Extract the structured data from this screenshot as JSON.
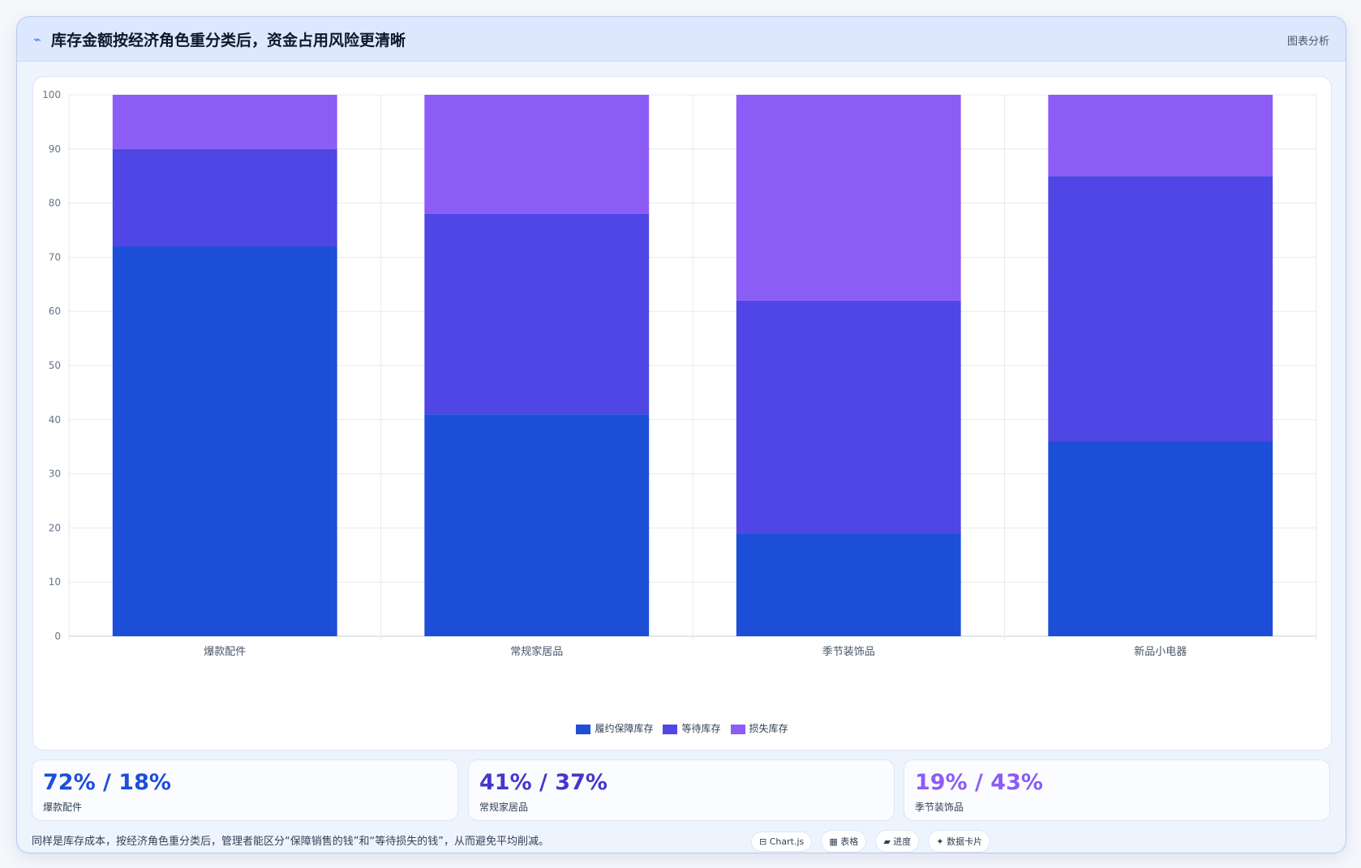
{
  "header": {
    "icon": "trend-icon",
    "title": "库存金额按经济角色重分类后，资金占用风险更清晰",
    "tag": "图表分析"
  },
  "chart_data": {
    "type": "bar",
    "stacked": true,
    "categories": [
      "爆款配件",
      "常规家居品",
      "季节装饰品",
      "新品小电器"
    ],
    "series": [
      {
        "name": "履约保障库存",
        "values": [
          72,
          41,
          19,
          36
        ],
        "color": "#1d4ed8"
      },
      {
        "name": "等待库存",
        "values": [
          18,
          37,
          43,
          49
        ],
        "color": "#4f46e5"
      },
      {
        "name": "损失库存",
        "values": [
          10,
          22,
          38,
          15
        ],
        "color": "#8b5cf6"
      }
    ],
    "ylim": [
      0,
      100
    ],
    "yticks": [
      0,
      10,
      20,
      30,
      40,
      50,
      60,
      70,
      80,
      90,
      100
    ],
    "grid": true,
    "legend": "bottom"
  },
  "stats": [
    {
      "value": "72% / 18%",
      "label": "爆款配件",
      "color": "#1d4ed8"
    },
    {
      "value": "41% / 37%",
      "label": "常规家居品",
      "color": "#4338ca"
    },
    {
      "value": "19% / 43%",
      "label": "季节装饰品",
      "color": "#8b5cf6"
    }
  ],
  "footer": {
    "note": "同样是库存成本，按经济角色重分类后，管理者能区分“保障销售的钱”和“等待损失的钱”，从而避免平均削减。",
    "chips": [
      "⊟ Chart.js",
      "▦ 表格",
      "▰ 进度",
      "✦ 数据卡片"
    ]
  }
}
